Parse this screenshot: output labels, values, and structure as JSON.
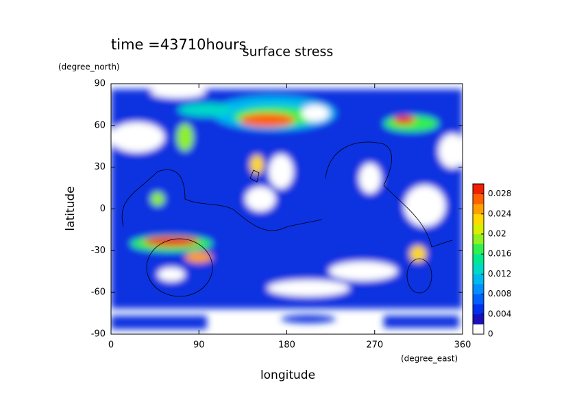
{
  "chart_data": {
    "type": "contour",
    "title": "surface stress",
    "subtitle": "time =43710hours",
    "x_label": "longitude",
    "y_label": "latitude",
    "x_unit": "(degree_east)",
    "y_unit": "(degree_north)",
    "xlim": [
      0,
      360
    ],
    "xticks": [
      0,
      90,
      180,
      270,
      360
    ],
    "ylim": [
      -90,
      90
    ],
    "yticks": [
      -90,
      -60,
      -30,
      0,
      30,
      60,
      90
    ],
    "zlim": [
      0,
      0.03
    ],
    "zticks": [
      0,
      0.004,
      0.008,
      0.012,
      0.016,
      0.02,
      0.024,
      0.028
    ],
    "colors": [
      "#ffffff",
      "#1a0fb8",
      "#0030ee",
      "#0060ff",
      "#0090ff",
      "#00b8f0",
      "#00d8c8",
      "#00e890",
      "#30f050",
      "#90f020",
      "#d8f000",
      "#ffd800",
      "#ffa000",
      "#ff6000",
      "#f02000"
    ]
  }
}
